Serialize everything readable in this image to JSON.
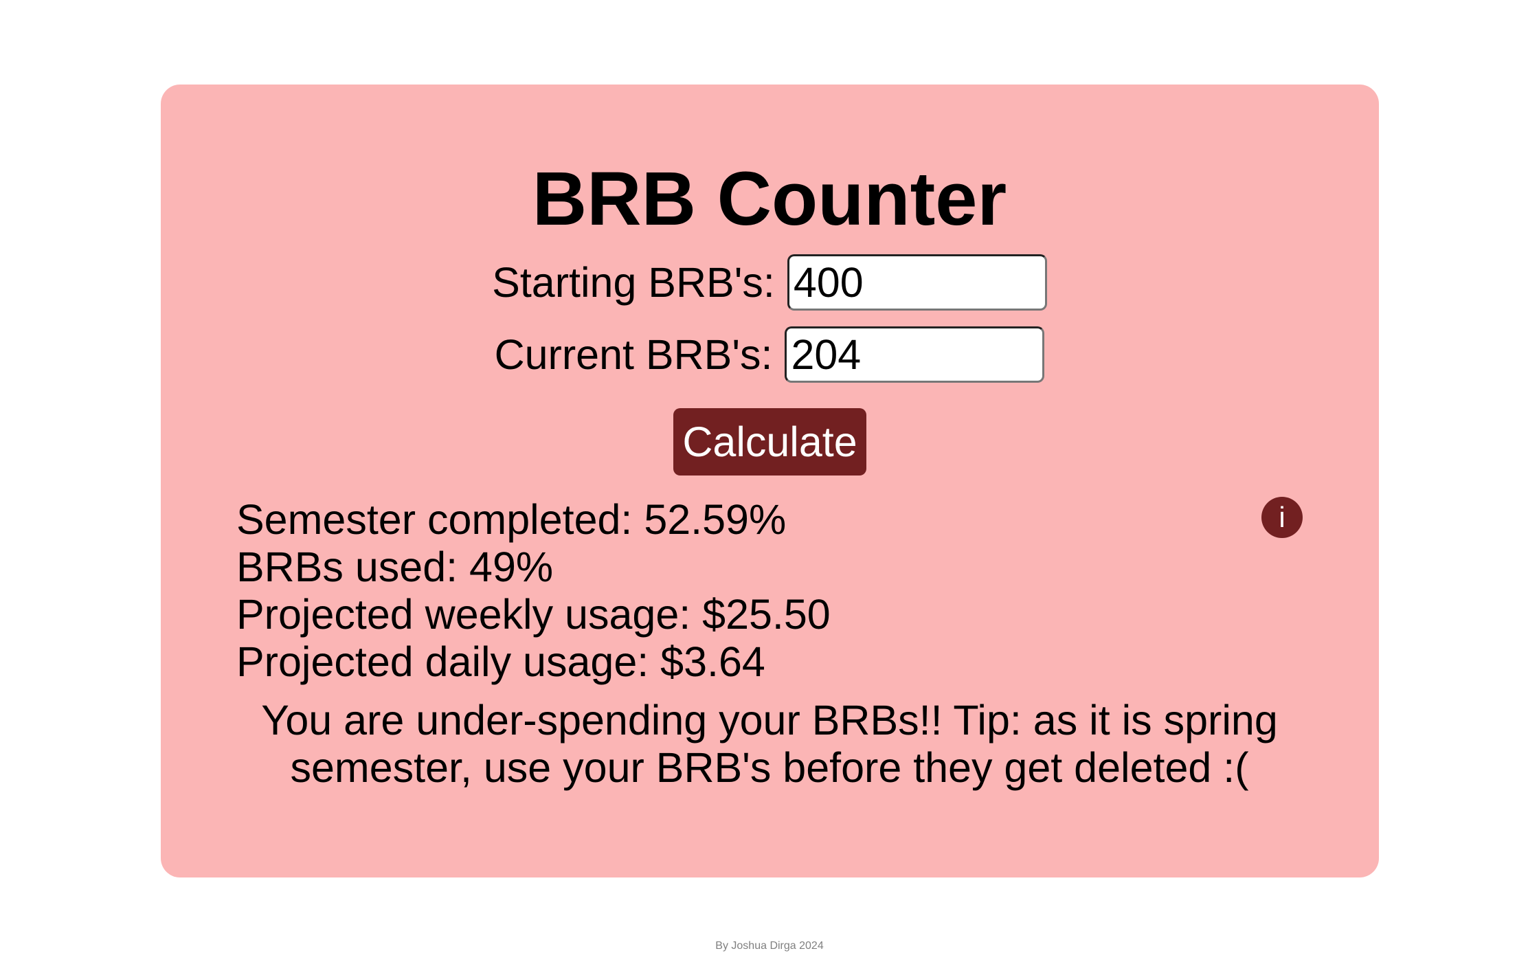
{
  "title": "BRB Counter",
  "form": {
    "starting_label": "Starting BRB's:",
    "starting_value": "400",
    "current_label": "Current BRB's:",
    "current_value": "204",
    "calculate_label": "Calculate"
  },
  "results": {
    "semester_completed": "Semester completed: 52.59%",
    "brbs_used": "BRBs used: 49%",
    "weekly": "Projected weekly usage: $25.50",
    "daily": "Projected daily usage: $3.64",
    "message": "You are under-spending your BRBs!! Tip: as it is spring semester, use your BRB's before they get deleted :("
  },
  "info_icon": "i",
  "footer": "By Joshua Dirga 2024",
  "colors": {
    "card": "#fbb5b5",
    "accent": "#722021"
  }
}
